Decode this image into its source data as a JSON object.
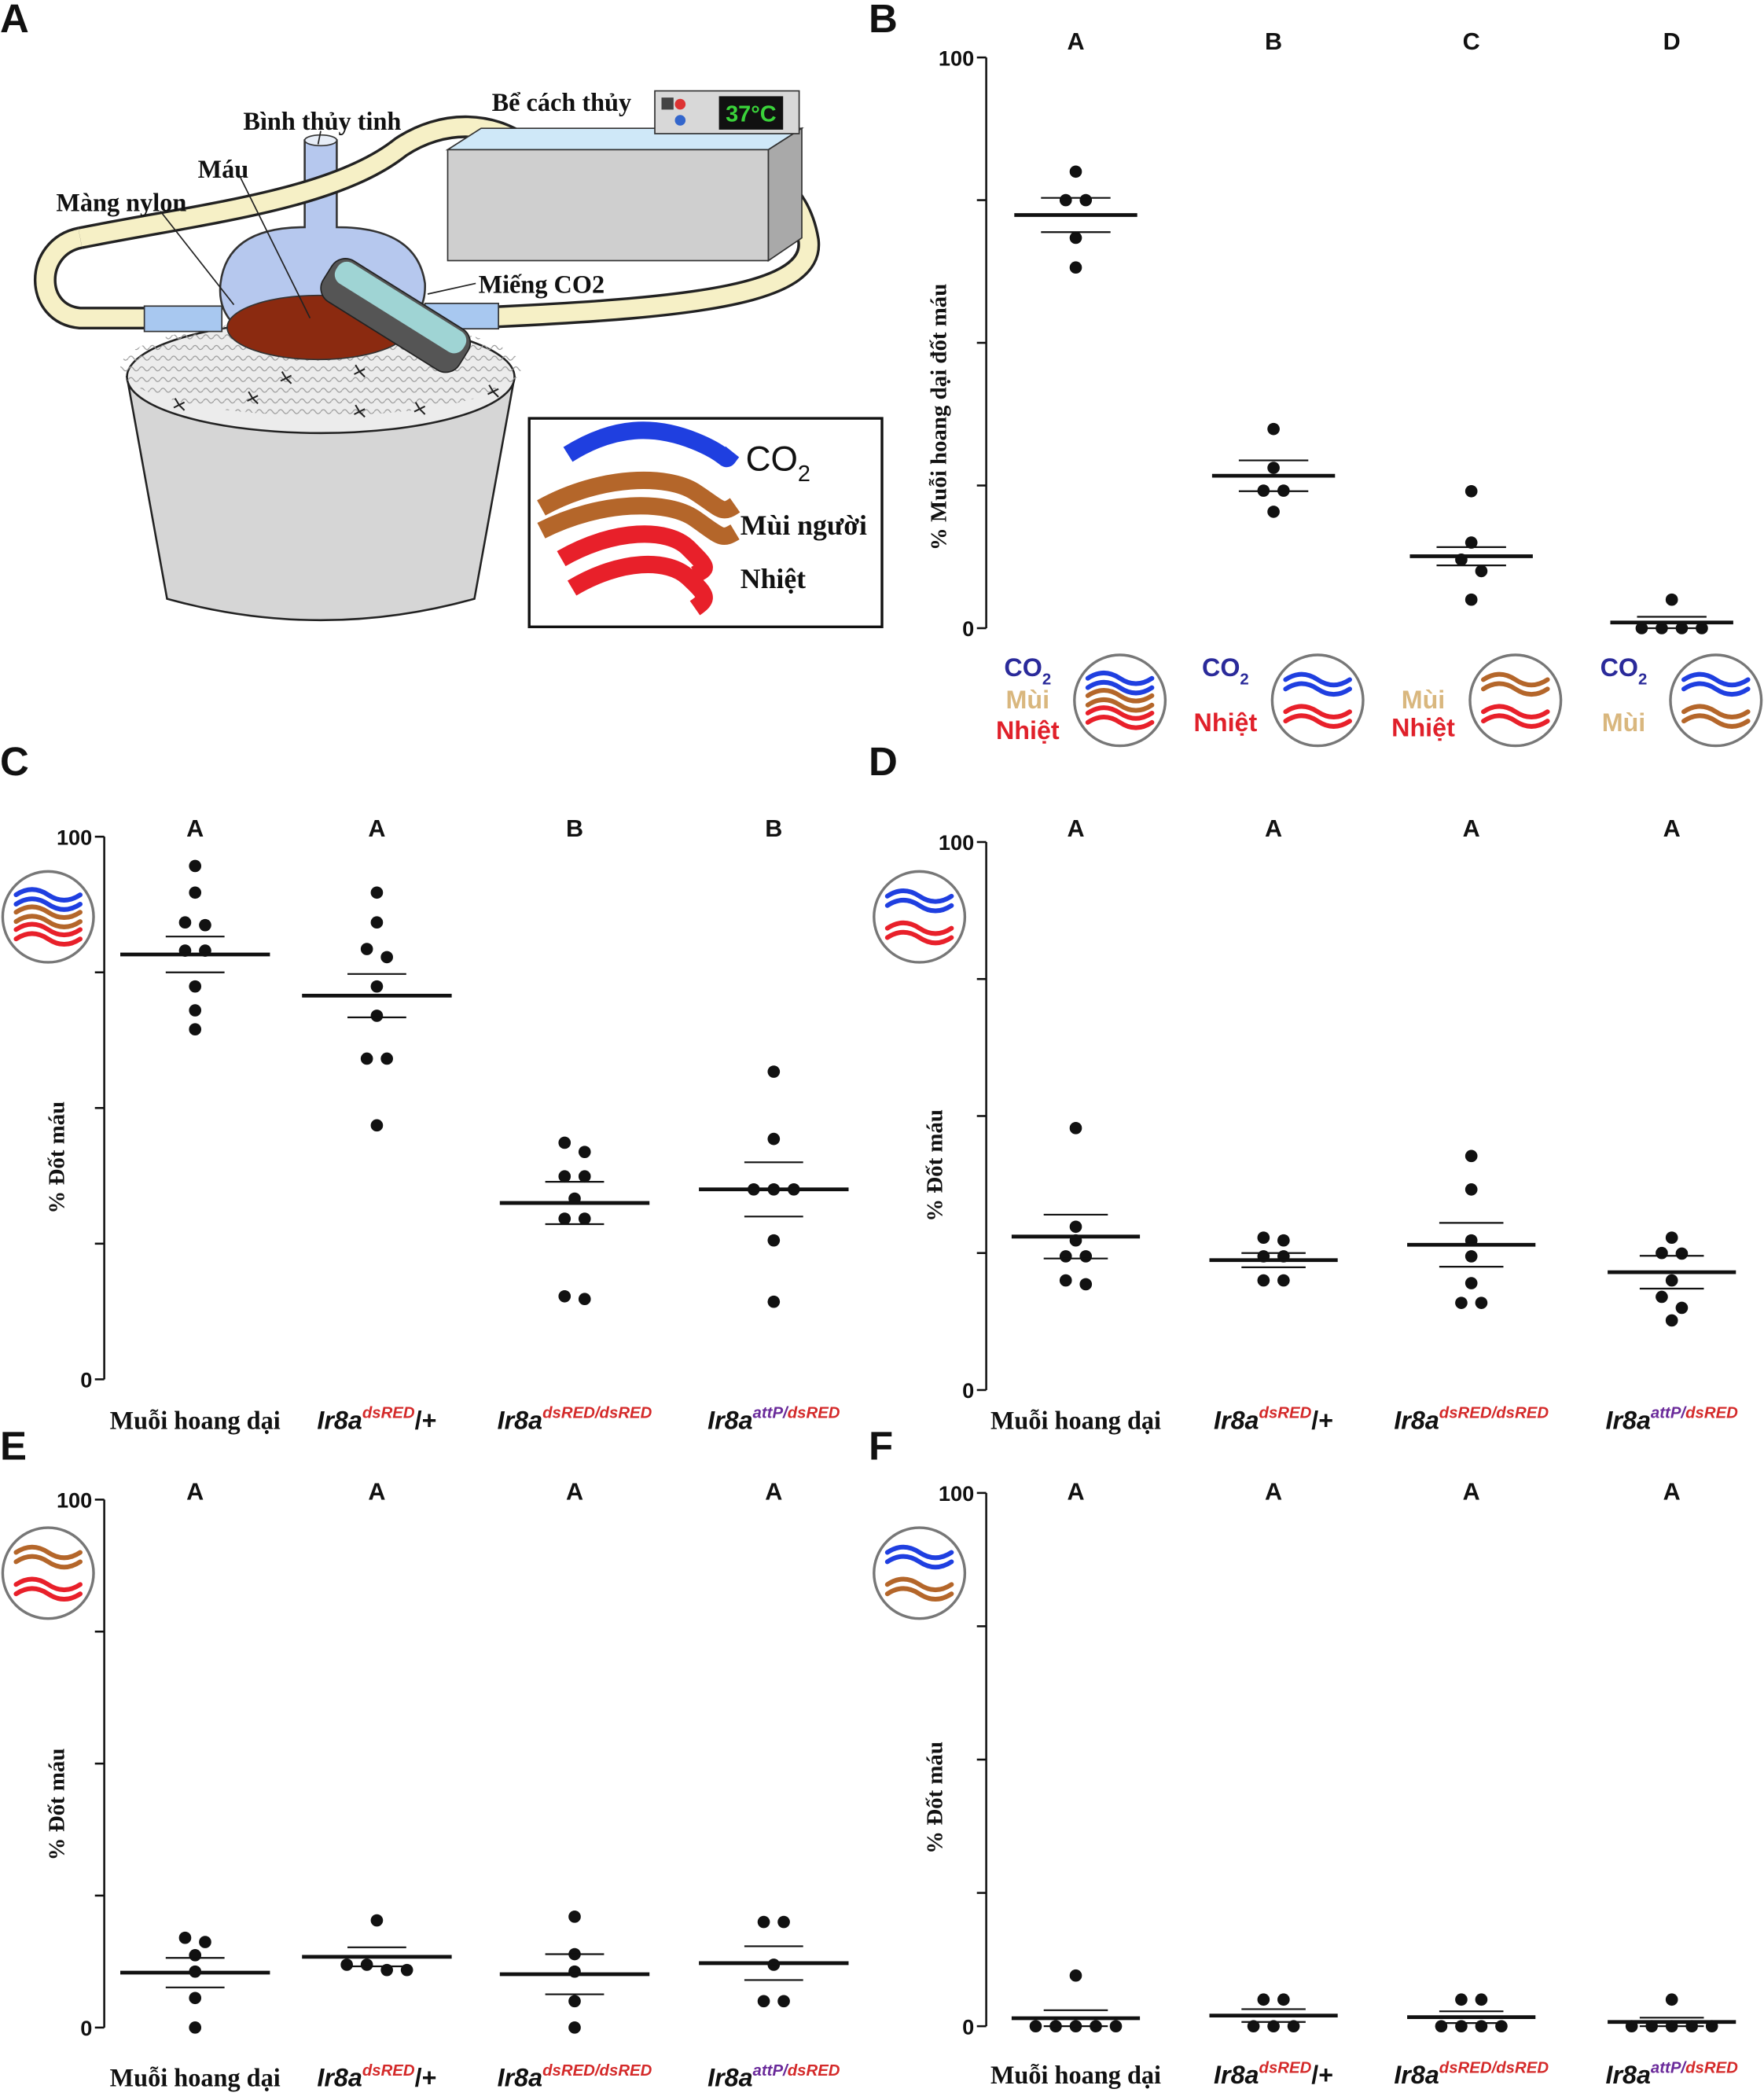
{
  "panel_letters": [
    "A",
    "B",
    "C",
    "D",
    "E",
    "F"
  ],
  "panel_a": {
    "flask": "Bình thủy tinh",
    "blood": "Máu",
    "membrane": "Màng nylon",
    "bath": "Bể cách thủy",
    "temperature": "37°C",
    "pad": "Miếng CO2",
    "legend": [
      {
        "text": "CO",
        "sub": "2"
      },
      {
        "text": "Mùi người"
      },
      {
        "text": "Nhiệt"
      }
    ]
  },
  "chart_data": [
    {
      "type": "dot",
      "ylabel": "% Muỗi hoang dại đốt máu",
      "ylim": [
        0,
        100
      ],
      "yticks": [
        0,
        100
      ],
      "minor_yticks": [
        25,
        50,
        75
      ],
      "group_letters": [
        "A",
        "B",
        "C",
        "D"
      ],
      "stimuli": [
        [
          {
            "text": "CO",
            "sub": "2",
            "color": "#2a2a9a"
          },
          {
            "text": "Mùi",
            "color": "#d9b77e"
          },
          {
            "text": "Nhiệt",
            "color": "#e0202a"
          }
        ],
        [
          {
            "text": "CO",
            "sub": "2",
            "color": "#2a2a9a"
          },
          {
            "text": "Nhiệt",
            "color": "#e0202a"
          }
        ],
        [
          {
            "text": "Mùi",
            "color": "#d9b77e"
          },
          {
            "text": "Nhiệt",
            "color": "#e0202a"
          }
        ],
        [
          {
            "text": "CO",
            "sub": "2",
            "color": "#2a2a9a"
          },
          {
            "text": "Mùi",
            "color": "#d9b77e"
          }
        ]
      ],
      "icon_waves": [
        [
          "#1f3fe0",
          "#b4662a",
          "#e8202a"
        ],
        [
          "#1f3fe0",
          "#e8202a"
        ],
        [
          "#b4662a",
          "#e8202a"
        ],
        [
          "#1f3fe0",
          "#b4662a"
        ]
      ],
      "values": [
        [
          80,
          75,
          75,
          68.4,
          63.2
        ],
        [
          34.9,
          28.1,
          24.1,
          24.1,
          20.4
        ],
        [
          24,
          15,
          12,
          10,
          5
        ],
        [
          5,
          0,
          0,
          0,
          0
        ]
      ],
      "means": [
        72.4,
        26.7,
        12.6,
        1
      ],
      "sems": [
        3,
        2.7,
        1.6,
        1
      ]
    },
    {
      "type": "dot",
      "ylabel": "% Đốt máu",
      "ylim": [
        0,
        100
      ],
      "yticks": [
        0,
        100
      ],
      "minor_yticks": [
        25,
        50,
        75
      ],
      "group_letters": [
        "A",
        "A",
        "B",
        "B"
      ],
      "icon_waves": [
        "#1f3fe0",
        "#b4662a",
        "#e8202a"
      ],
      "categories": [
        [
          {
            "text": "Muỗi hoang dại",
            "serif": true
          }
        ],
        [
          {
            "text": "Ir8a",
            "italic": true
          },
          {
            "text": "dsRED",
            "sup": true,
            "italic": true,
            "color": "#d42a2a"
          },
          {
            "text": "/+"
          }
        ],
        [
          {
            "text": "Ir8a",
            "italic": true
          },
          {
            "text": "dsRED/dsRED",
            "sup": true,
            "italic": true,
            "color": "#d42a2a"
          }
        ],
        [
          {
            "text": "Ir8a",
            "italic": true
          },
          {
            "text": "attP/",
            "sup": true,
            "italic": true,
            "color": "#6a2a9a"
          },
          {
            "text": "dsRED",
            "sup": true,
            "italic": true,
            "color": "#d42a2a"
          }
        ]
      ],
      "values": [
        [
          94.6,
          89.7,
          84.2,
          83.7,
          79,
          79,
          72.4,
          68,
          64.5
        ],
        [
          89.7,
          84.2,
          79.3,
          77.8,
          72.4,
          67,
          59.1,
          59.1,
          46.8
        ],
        [
          43.6,
          41.9,
          37.4,
          37.4,
          33.3,
          29.6,
          29.6,
          15.3,
          14.8
        ],
        [
          56.7,
          44.3,
          35,
          35,
          35,
          25.6,
          14.3
        ]
      ],
      "means": [
        78.3,
        70.7,
        32.5,
        35
      ],
      "sems": [
        3.3,
        4,
        3.9,
        5
      ]
    },
    {
      "type": "dot",
      "ylabel": "% Đốt máu",
      "ylim": [
        0,
        100
      ],
      "yticks": [
        0,
        100
      ],
      "minor_yticks": [
        25,
        50,
        75
      ],
      "group_letters": [
        "A",
        "A",
        "A",
        "A"
      ],
      "icon_waves": [
        "#1f3fe0",
        "#e8202a"
      ],
      "categories": [
        [
          {
            "text": "Muỗi hoang dại",
            "serif": true
          }
        ],
        [
          {
            "text": "Ir8a",
            "italic": true
          },
          {
            "text": "dsRED",
            "sup": true,
            "italic": true,
            "color": "#d42a2a"
          },
          {
            "text": "/+"
          }
        ],
        [
          {
            "text": "Ir8a",
            "italic": true
          },
          {
            "text": "dsRED/dsRED",
            "sup": true,
            "italic": true,
            "color": "#d42a2a"
          }
        ],
        [
          {
            "text": "Ir8a",
            "italic": true
          },
          {
            "text": "attP/",
            "sup": true,
            "italic": true,
            "color": "#6a2a9a"
          },
          {
            "text": "dsRED",
            "sup": true,
            "italic": true,
            "color": "#d42a2a"
          }
        ]
      ],
      "values": [
        [
          47.8,
          29.8,
          27.3,
          24.4,
          24.4,
          20,
          19.3
        ],
        [
          27.8,
          27.3,
          24.4,
          24.4,
          20,
          20
        ],
        [
          42.7,
          36.6,
          27.3,
          24.4,
          19.5,
          15.9,
          15.9
        ],
        [
          27.8,
          25,
          24.9,
          20,
          17,
          15,
          12.7
        ]
      ],
      "means": [
        28,
        23.7,
        26.5,
        21.5
      ],
      "sems": [
        4,
        1.3,
        4,
        3
      ]
    },
    {
      "type": "dot",
      "ylabel": "% Đốt máu",
      "ylim": [
        0,
        100
      ],
      "yticks": [
        0,
        100
      ],
      "minor_yticks": [
        25,
        50,
        75
      ],
      "group_letters": [
        "A",
        "A",
        "A",
        "A"
      ],
      "icon_waves": [
        "#b4662a",
        "#e8202a"
      ],
      "categories": [
        [
          {
            "text": "Muỗi hoang dại",
            "serif": true
          }
        ],
        [
          {
            "text": "Ir8a",
            "italic": true
          },
          {
            "text": "dsRED",
            "sup": true,
            "italic": true,
            "color": "#d42a2a"
          },
          {
            "text": "/+"
          }
        ],
        [
          {
            "text": "Ir8a",
            "italic": true
          },
          {
            "text": "dsRED/dsRED",
            "sup": true,
            "italic": true,
            "color": "#d42a2a"
          }
        ],
        [
          {
            "text": "Ir8a",
            "italic": true
          },
          {
            "text": "attP/",
            "sup": true,
            "italic": true,
            "color": "#6a2a9a"
          },
          {
            "text": "dsRED",
            "sup": true,
            "italic": true,
            "color": "#d42a2a"
          }
        ]
      ],
      "values": [
        [
          17,
          16.2,
          13.7,
          10.6,
          5.6,
          0
        ],
        [
          20.3,
          11.9,
          11.9,
          10.9,
          10.9
        ],
        [
          21,
          13.9,
          10.6,
          5,
          0
        ],
        [
          20,
          20,
          11.9,
          5,
          5
        ]
      ],
      "means": [
        10.4,
        13.4,
        10.1,
        12.2
      ],
      "sems": [
        2.8,
        1.8,
        3.8,
        3.2
      ]
    },
    {
      "type": "dot",
      "ylabel": "% Đốt máu",
      "ylim": [
        0,
        100
      ],
      "yticks": [
        0,
        100
      ],
      "minor_yticks": [
        25,
        50,
        75
      ],
      "group_letters": [
        "A",
        "A",
        "A",
        "A"
      ],
      "icon_waves": [
        "#1f3fe0",
        "#b4662a"
      ],
      "categories": [
        [
          {
            "text": "Muỗi hoang dại",
            "serif": true
          }
        ],
        [
          {
            "text": "Ir8a",
            "italic": true
          },
          {
            "text": "dsRED",
            "sup": true,
            "italic": true,
            "color": "#d42a2a"
          },
          {
            "text": "/+"
          }
        ],
        [
          {
            "text": "Ir8a",
            "italic": true
          },
          {
            "text": "dsRED/dsRED",
            "sup": true,
            "italic": true,
            "color": "#d42a2a"
          }
        ],
        [
          {
            "text": "Ir8a",
            "italic": true
          },
          {
            "text": "attP/",
            "sup": true,
            "italic": true,
            "color": "#6a2a9a"
          },
          {
            "text": "dsRED",
            "sup": true,
            "italic": true,
            "color": "#d42a2a"
          }
        ]
      ],
      "values": [
        [
          9.5,
          0,
          0,
          0,
          0,
          0
        ],
        [
          5,
          5,
          0,
          0,
          0
        ],
        [
          5,
          5,
          0,
          0,
          0,
          0
        ],
        [
          5,
          0,
          0,
          0,
          0,
          0
        ]
      ],
      "means": [
        1.5,
        2,
        1.7,
        0.8
      ],
      "sems": [
        1.5,
        1.2,
        1.1,
        0.8
      ]
    }
  ]
}
